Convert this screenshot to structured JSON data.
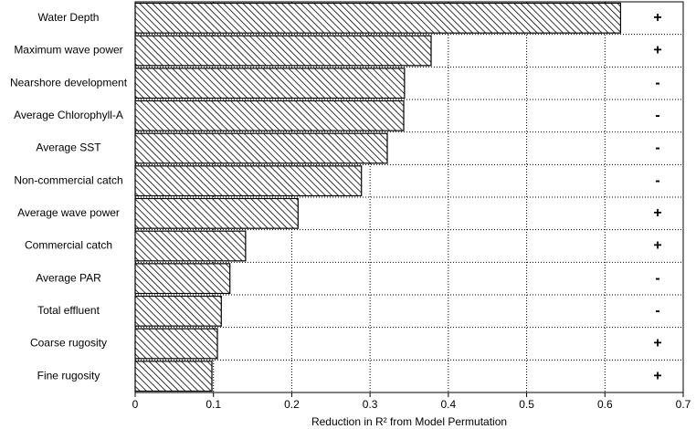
{
  "chart_data": {
    "type": "barh",
    "categories": [
      "Water Depth",
      "Maximum wave power",
      "Nearshore development",
      "Average Chlorophyll-A",
      "Average SST",
      "Non-commercial catch",
      "Average wave power",
      "Commercial catch",
      "Average PAR",
      "Total effluent",
      "Coarse rugosity",
      "Fine rugosity"
    ],
    "values": [
      0.62,
      0.378,
      0.344,
      0.343,
      0.322,
      0.289,
      0.208,
      0.141,
      0.121,
      0.11,
      0.105,
      0.098
    ],
    "annotations": [
      "+",
      "+",
      "-",
      "-",
      "-",
      "-",
      "+",
      "+",
      "-",
      "-",
      "+",
      "+"
    ],
    "xlabel": "Reduction in R² from Model Permutation",
    "xlim": [
      0,
      0.7
    ],
    "xticks": [
      0,
      0.1,
      0.2,
      0.3,
      0.4,
      0.5,
      0.6,
      0.7
    ],
    "color": "#000000",
    "grid": true
  }
}
